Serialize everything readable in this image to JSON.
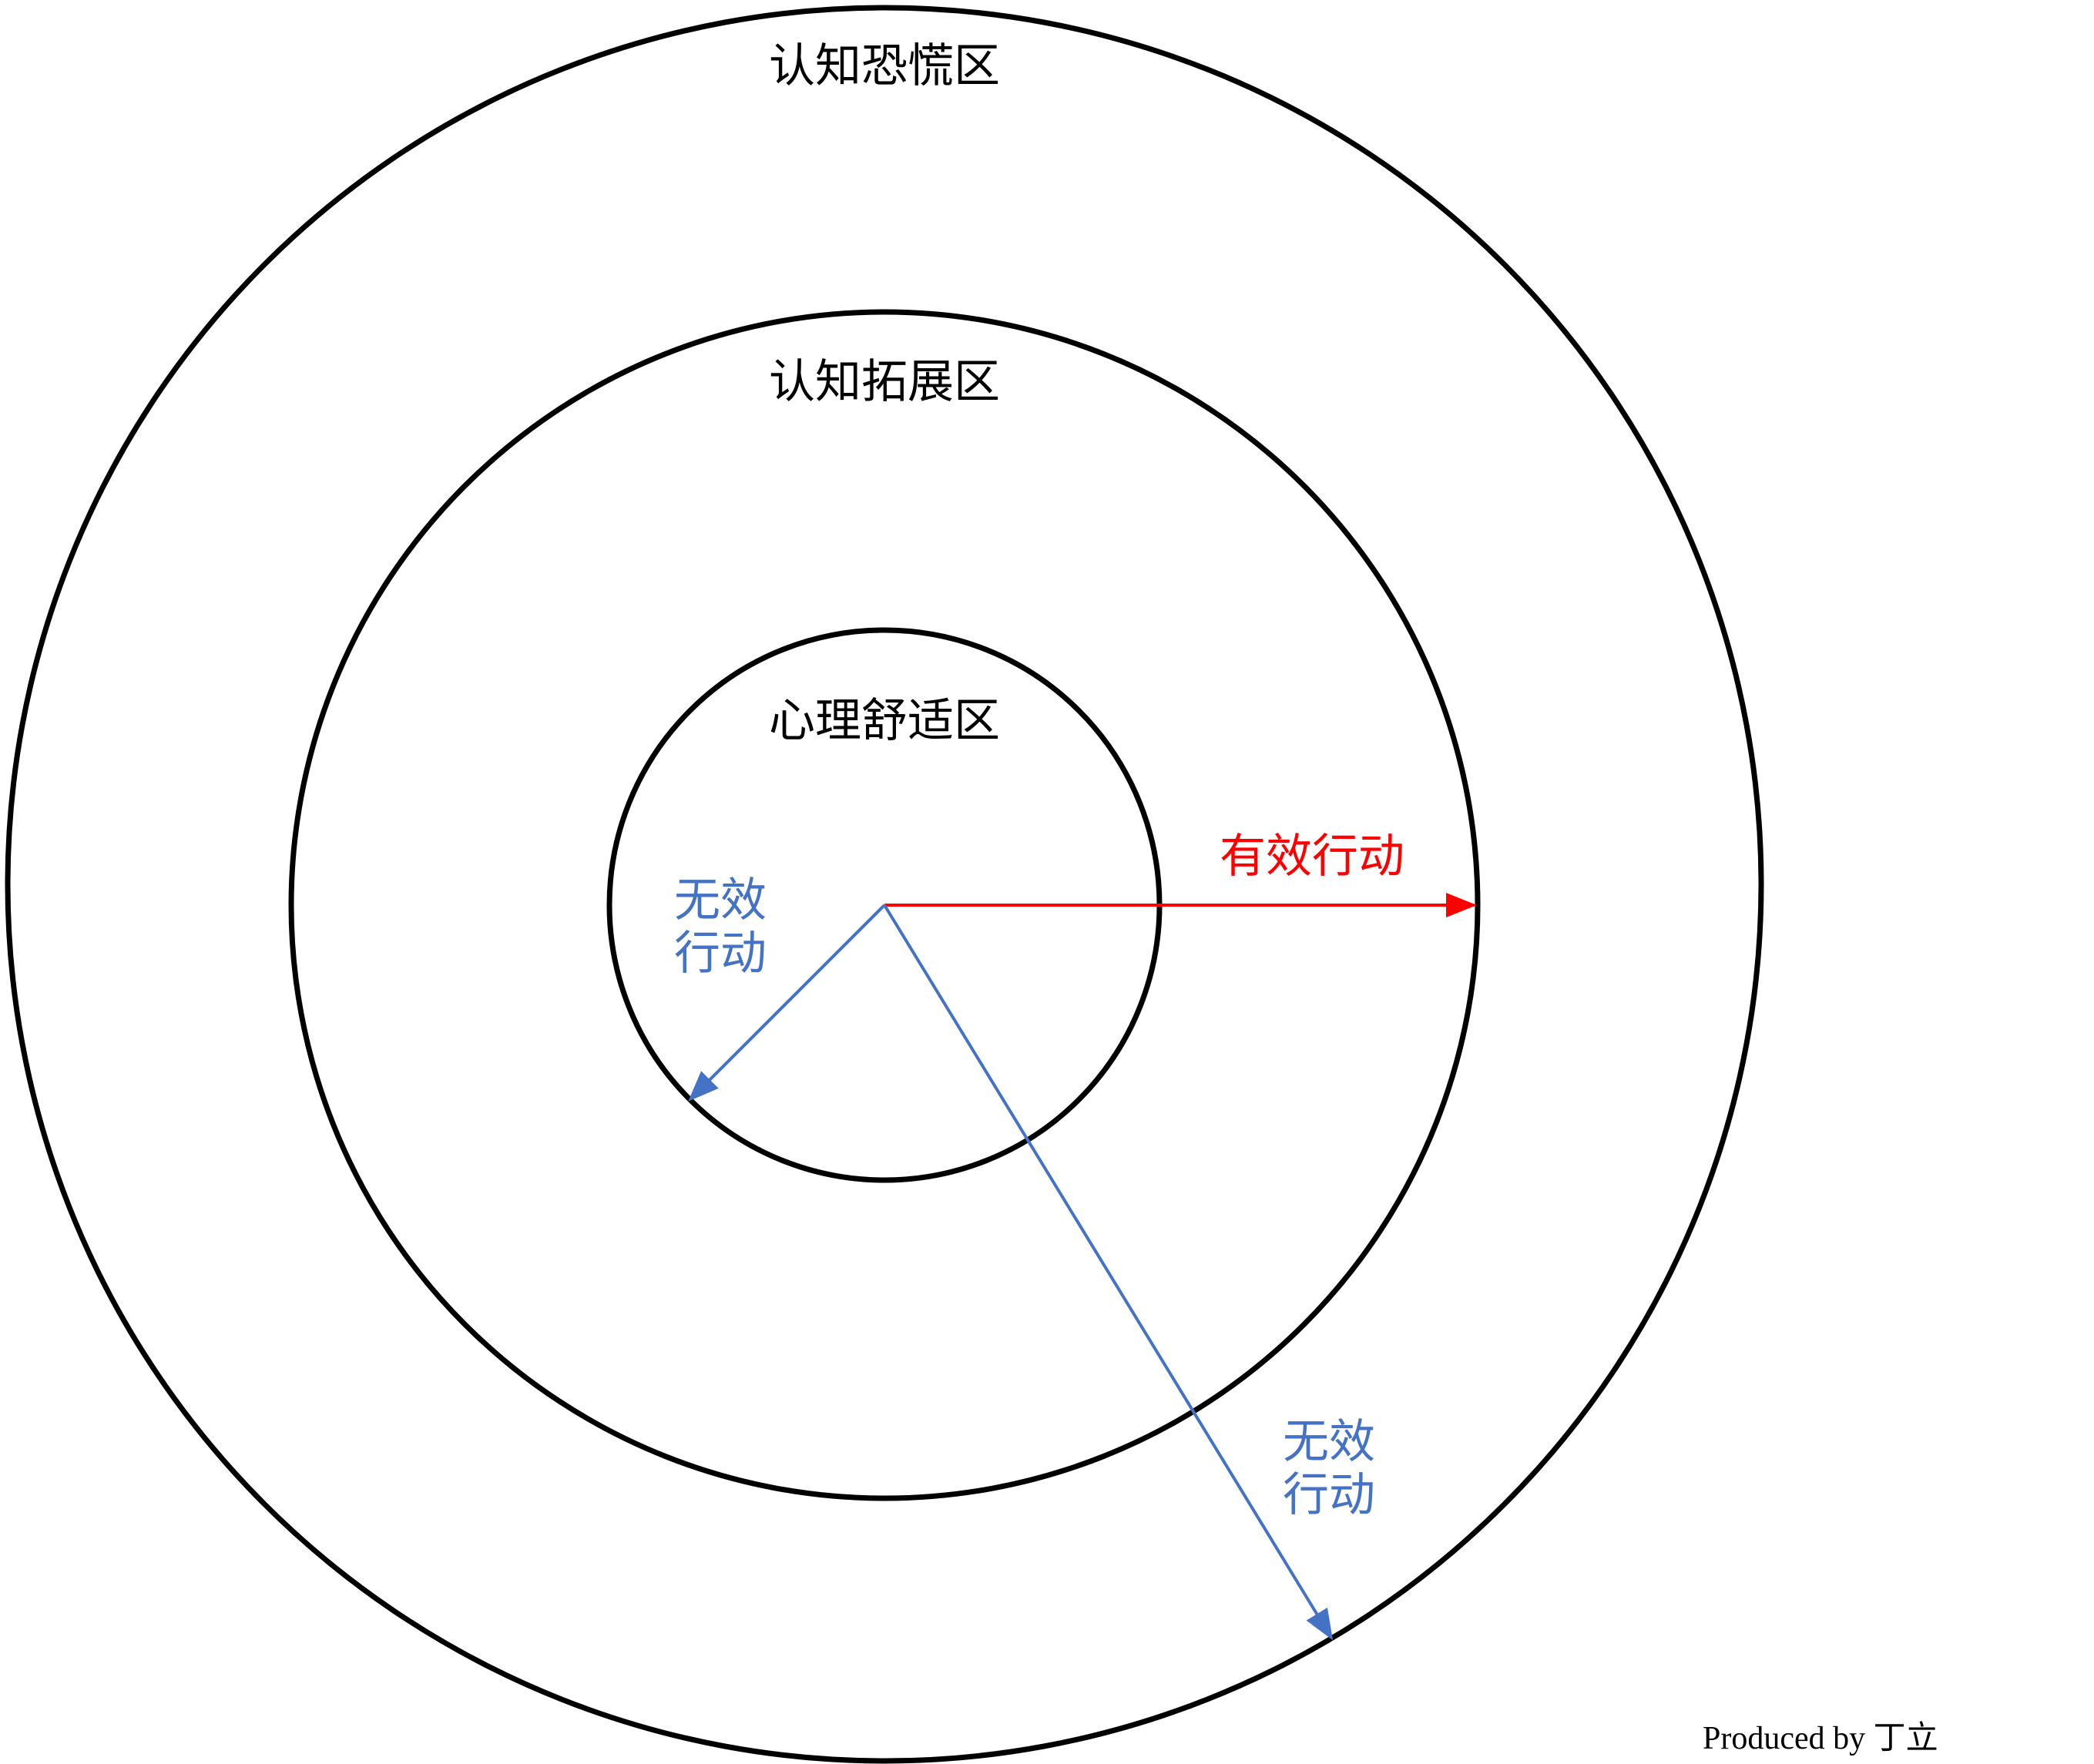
{
  "zones": {
    "outer": "认知恐慌区",
    "middle": "认知拓展区",
    "inner": "心理舒适区"
  },
  "arrows": {
    "effective": {
      "label": "有效行动",
      "color": "#ff0000"
    },
    "ineffective_inner": {
      "line1": "无效",
      "line2": "行动",
      "color": "#4472c4"
    },
    "ineffective_outer": {
      "line1": "无效",
      "line2": "行动",
      "color": "#4472c4"
    }
  },
  "credit": "Produced by 丁立"
}
